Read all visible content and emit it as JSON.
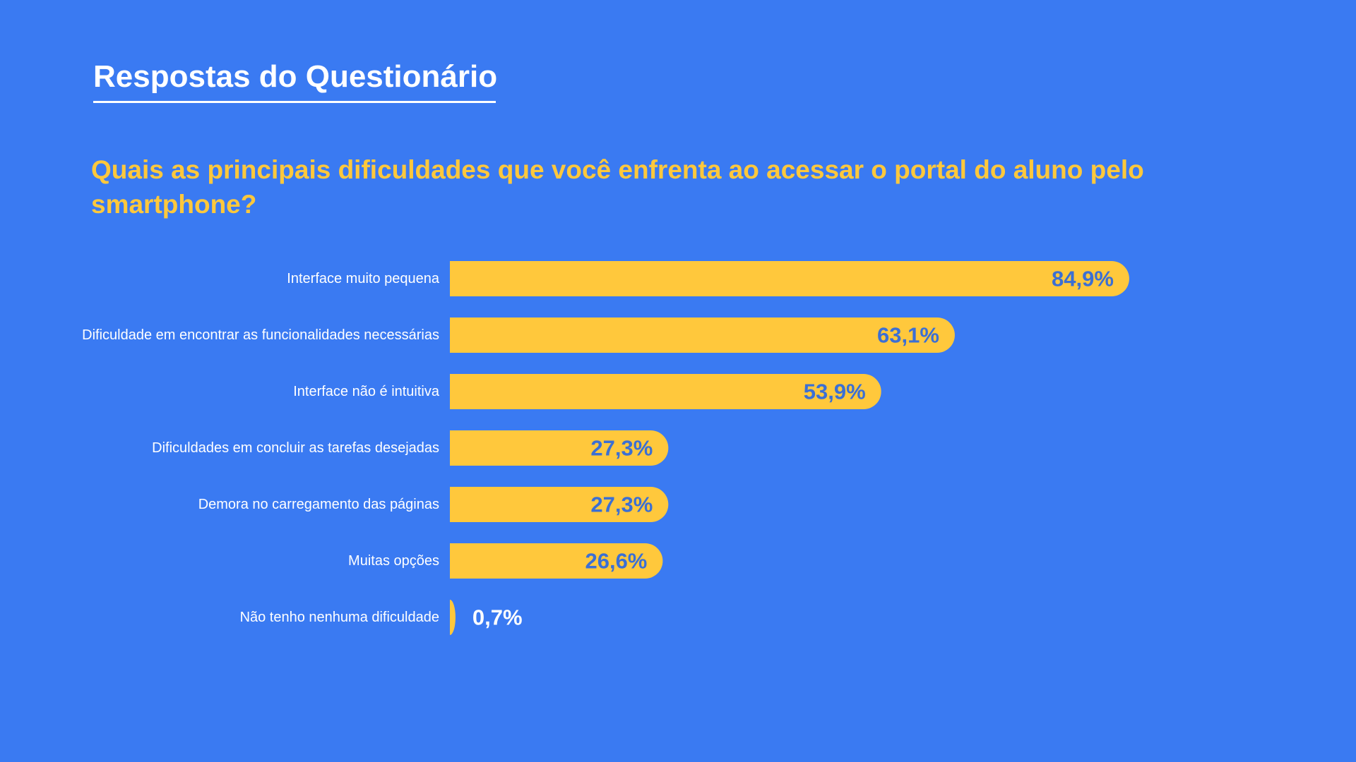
{
  "header": {
    "title": "Respostas do Questionário"
  },
  "question": "Quais as principais dificuldades que você enfrenta ao acessar o portal do aluno pelo smartphone?",
  "colors": {
    "background": "#3a7af2",
    "bar": "#ffc83c",
    "value_label_inside": "#3b6fd4",
    "value_label_outside": "#ffffff",
    "category_label": "#ffffff"
  },
  "chart_data": {
    "type": "bar",
    "orientation": "horizontal",
    "categories": [
      "Interface muito pequena",
      "Dificuldade em encontrar as funcionalidades necessárias",
      "Interface não é intuitiva",
      "Dificuldades em concluir as tarefas desejadas",
      "Demora no carregamento das páginas",
      "Muitas opções",
      "Não tenho nenhuma dificuldade"
    ],
    "values": [
      84.9,
      63.1,
      53.9,
      27.3,
      27.3,
      26.6,
      0.7
    ],
    "value_labels": [
      "84,9%",
      "63,1%",
      "53,9%",
      "27,3%",
      "27,3%",
      "26,6%",
      "0,7%"
    ],
    "xlim": [
      0,
      100
    ],
    "grid": false,
    "legend": "none"
  }
}
